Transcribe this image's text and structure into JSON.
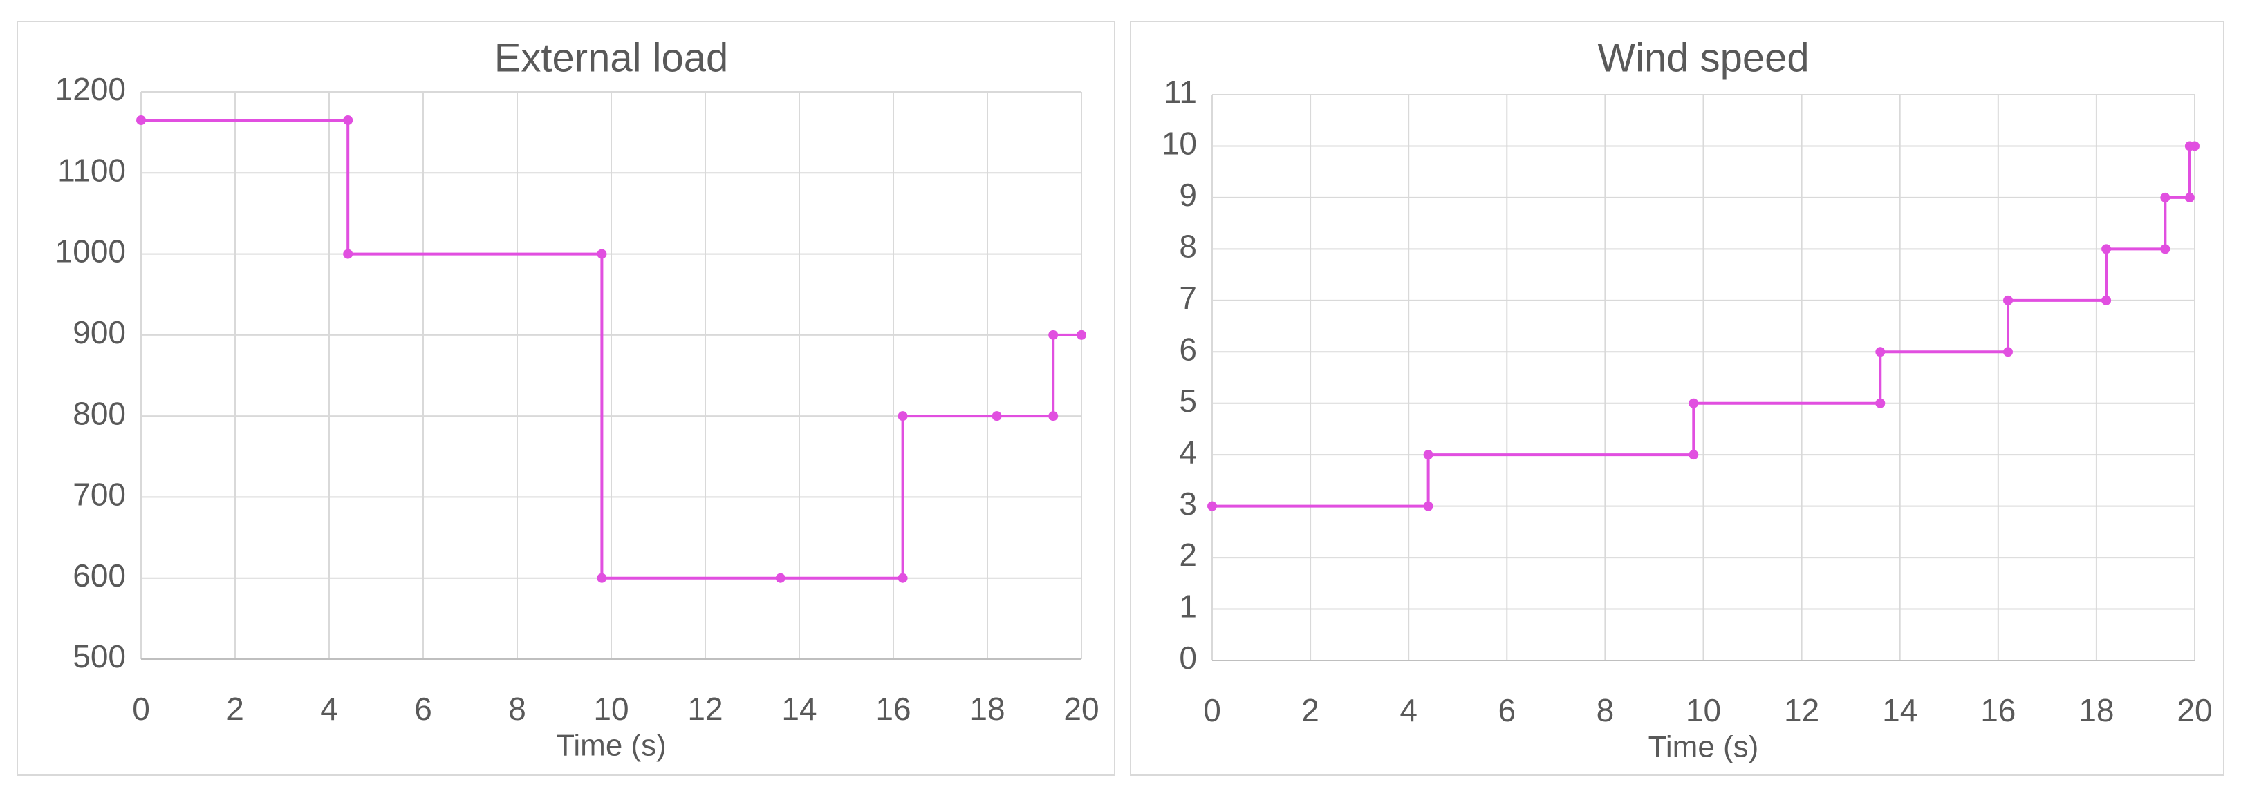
{
  "chart_data": [
    {
      "type": "line",
      "title": "External load",
      "x_label": "Time (s)",
      "x": [
        0,
        4.4,
        4.4,
        9.8,
        9.8,
        13.6,
        16.2,
        16.2,
        18.2,
        19.4,
        19.4,
        20
      ],
      "values": [
        1165,
        1165,
        1000,
        1000,
        600,
        600,
        600,
        800,
        800,
        800,
        900,
        900
      ],
      "color": "#e14fe0",
      "markers": true,
      "grid": true,
      "xlim": [
        0,
        20
      ],
      "xticks": [
        0,
        2,
        4,
        6,
        8,
        10,
        12,
        14,
        16,
        18,
        20
      ],
      "ylim": [
        500,
        1200
      ],
      "yticks": [
        500,
        600,
        700,
        800,
        900,
        1000,
        1100,
        1200
      ]
    },
    {
      "type": "line",
      "title": "Wind speed",
      "x_label": "Time (s)",
      "x": [
        0,
        4.4,
        4.4,
        9.8,
        9.8,
        13.6,
        13.6,
        16.2,
        16.2,
        18.2,
        18.2,
        19.4,
        19.4,
        19.9,
        19.9,
        20
      ],
      "values": [
        3,
        3,
        4,
        4,
        5,
        5,
        6,
        6,
        7,
        7,
        8,
        8,
        9,
        9,
        10,
        10
      ],
      "color": "#e14fe0",
      "markers": true,
      "grid": true,
      "xlim": [
        0,
        20
      ],
      "xticks": [
        0,
        2,
        4,
        6,
        8,
        10,
        12,
        14,
        16,
        18,
        20
      ],
      "ylim": [
        0,
        11
      ],
      "yticks": [
        0,
        1,
        2,
        3,
        4,
        5,
        6,
        7,
        8,
        9,
        10,
        11
      ]
    }
  ]
}
